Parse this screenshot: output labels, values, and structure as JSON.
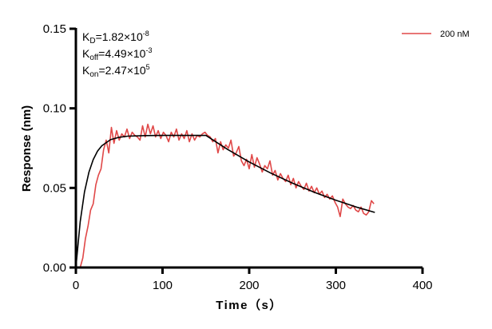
{
  "chart_data": {
    "type": "line",
    "title": "",
    "xlabel": "Time（s）",
    "ylabel": "Response (nm)",
    "xlim": [
      0,
      400
    ],
    "ylim": [
      0,
      0.15
    ],
    "xticks": [
      "0",
      "100",
      "200",
      "300",
      "400"
    ],
    "yticks": [
      "0.00",
      "0.05",
      "0.10",
      "0.15"
    ],
    "grid": false,
    "legend_position": "top-right",
    "annotations": {
      "kd": {
        "sym": "K",
        "sub": "D",
        "val": "=1.82×10",
        "exp": "-8"
      },
      "koff": {
        "sym": "K",
        "sub": "off",
        "val": "=4.49×10",
        "exp": "-3"
      },
      "kon": {
        "sym": "K",
        "sub": "on",
        "val": "=2.47×10",
        "exp": "5"
      }
    },
    "series": [
      {
        "name": "200 nM",
        "color": "#e04848",
        "x": [
          5,
          8,
          11,
          14,
          17,
          20,
          23,
          26,
          29,
          32,
          35,
          38,
          41,
          44,
          47,
          50,
          53,
          56,
          59,
          62,
          65,
          68,
          71,
          74,
          77,
          80,
          83,
          86,
          89,
          92,
          95,
          98,
          101,
          104,
          107,
          110,
          113,
          116,
          119,
          122,
          125,
          128,
          131,
          134,
          137,
          140,
          143,
          146,
          149,
          152,
          155,
          158,
          161,
          164,
          167,
          170,
          173,
          176,
          179,
          182,
          185,
          188,
          191,
          194,
          197,
          200,
          203,
          206,
          209,
          212,
          215,
          218,
          221,
          224,
          227,
          230,
          233,
          236,
          239,
          242,
          245,
          248,
          251,
          254,
          257,
          260,
          263,
          266,
          269,
          272,
          275,
          278,
          281,
          284,
          287,
          290,
          293,
          296,
          299,
          302,
          305,
          308,
          311,
          314,
          317,
          320,
          323,
          326,
          329,
          332,
          335,
          338,
          341,
          344
        ],
        "y": [
          0.0,
          0.006,
          0.018,
          0.026,
          0.036,
          0.04,
          0.052,
          0.058,
          0.062,
          0.074,
          0.08,
          0.072,
          0.088,
          0.078,
          0.086,
          0.08,
          0.084,
          0.082,
          0.087,
          0.081,
          0.085,
          0.083,
          0.082,
          0.08,
          0.089,
          0.082,
          0.09,
          0.084,
          0.089,
          0.082,
          0.086,
          0.081,
          0.085,
          0.083,
          0.079,
          0.085,
          0.082,
          0.087,
          0.08,
          0.084,
          0.081,
          0.086,
          0.079,
          0.084,
          0.08,
          0.083,
          0.082,
          0.084,
          0.085,
          0.083,
          0.082,
          0.079,
          0.081,
          0.072,
          0.079,
          0.074,
          0.077,
          0.075,
          0.08,
          0.07,
          0.072,
          0.076,
          0.067,
          0.064,
          0.068,
          0.062,
          0.071,
          0.063,
          0.069,
          0.065,
          0.06,
          0.064,
          0.062,
          0.067,
          0.058,
          0.061,
          0.055,
          0.059,
          0.056,
          0.054,
          0.058,
          0.052,
          0.056,
          0.05,
          0.054,
          0.051,
          0.049,
          0.053,
          0.048,
          0.051,
          0.047,
          0.05,
          0.046,
          0.048,
          0.044,
          0.046,
          0.043,
          0.045,
          0.041,
          0.038,
          0.032,
          0.043,
          0.04,
          0.038,
          0.037,
          0.039,
          0.036,
          0.035,
          0.038,
          0.034,
          0.033,
          0.035,
          0.042,
          0.04
        ]
      },
      {
        "color": "#000000",
        "x": [
          0,
          5,
          10,
          15,
          20,
          25,
          30,
          40,
          50,
          60,
          80,
          100,
          150,
          175,
          200,
          225,
          250,
          275,
          300,
          325,
          345
        ],
        "y": [
          0,
          0.0287,
          0.0475,
          0.0598,
          0.0678,
          0.0731,
          0.0765,
          0.0803,
          0.0818,
          0.0825,
          0.0829,
          0.083,
          0.083,
          0.0742,
          0.0663,
          0.0593,
          0.053,
          0.0473,
          0.0423,
          0.0378,
          0.0346
        ]
      }
    ]
  }
}
